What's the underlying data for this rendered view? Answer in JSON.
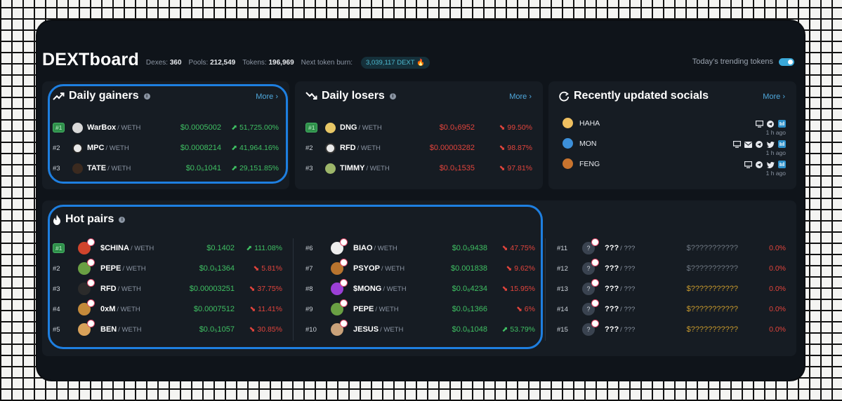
{
  "header": {
    "title": "DEXTboard",
    "dexes_label": "Dexes:",
    "dexes": "360",
    "pools_label": "Pools:",
    "pools": "212,549",
    "tokens_label": "Tokens:",
    "tokens": "196,969",
    "burn_label": "Next token burn:",
    "burn": "3,039,117 DEXT 🔥",
    "trending_label": "Today's trending tokens"
  },
  "gainers": {
    "title": "Daily gainers",
    "more": "More ›",
    "rows": [
      {
        "rank": "#1",
        "symbol": "WarBox",
        "pair": "/ WETH",
        "price": "$0.0005002",
        "change": "⬈ 51,725.00%"
      },
      {
        "rank": "#2",
        "symbol": "MPC",
        "pair": "/ WETH",
        "price": "$0.0008214",
        "change": "⬈ 41,964.16%"
      },
      {
        "rank": "#3",
        "symbol": "TATE",
        "pair": "/ WETH",
        "price": "$0.0₅1041",
        "change": "⬈ 29,151.85%"
      }
    ]
  },
  "losers": {
    "title": "Daily losers",
    "more": "More ›",
    "rows": [
      {
        "rank": "#1",
        "symbol": "DNG",
        "pair": "/ WETH",
        "price": "$0.0₅6952",
        "change": "⬊ 99.50%"
      },
      {
        "rank": "#2",
        "symbol": "RFD",
        "pair": "/ WETH",
        "price": "$0.00003282",
        "change": "⬊ 98.87%"
      },
      {
        "rank": "#3",
        "symbol": "TIMMY",
        "pair": "/ WETH",
        "price": "$0.0₅1535",
        "change": "⬊ 97.81%"
      }
    ]
  },
  "socials": {
    "title": "Recently updated socials",
    "more": "More ›",
    "rows": [
      {
        "name": "HAHA",
        "ago": "1 h ago"
      },
      {
        "name": "MON",
        "ago": "1 h ago"
      },
      {
        "name": "FENG",
        "ago": "1 h ago"
      }
    ]
  },
  "hot": {
    "title": "Hot pairs",
    "rows": [
      {
        "rank": "#1",
        "symbol": "$CHINA",
        "pair": "/ WETH",
        "price": "$0.1402",
        "change": "⬈ 111.08%",
        "dir": "up"
      },
      {
        "rank": "#2",
        "symbol": "PEPE",
        "pair": "/ WETH",
        "price": "$0.0₅1364",
        "change": "⬊ 5.81%",
        "dir": "down"
      },
      {
        "rank": "#3",
        "symbol": "RFD",
        "pair": "/ WETH",
        "price": "$0.00003251",
        "change": "⬊ 37.75%",
        "dir": "down"
      },
      {
        "rank": "#4",
        "symbol": "0xM",
        "pair": "/ WETH",
        "price": "$0.0007512",
        "change": "⬊ 11.41%",
        "dir": "down"
      },
      {
        "rank": "#5",
        "symbol": "BEN",
        "pair": "/ WETH",
        "price": "$0.0₅1057",
        "change": "⬊ 30.85%",
        "dir": "down"
      },
      {
        "rank": "#6",
        "symbol": "BIAO",
        "pair": "/ WETH",
        "price": "$0.0₅9438",
        "change": "⬊ 47.75%",
        "dir": "down"
      },
      {
        "rank": "#7",
        "symbol": "PSYOP",
        "pair": "/ WETH",
        "price": "$0.001838",
        "change": "⬊ 9.62%",
        "dir": "down"
      },
      {
        "rank": "#8",
        "symbol": "$MONG",
        "pair": "/ WETH",
        "price": "$0.0₆4234",
        "change": "⬊ 15.95%",
        "dir": "down"
      },
      {
        "rank": "#9",
        "symbol": "PEPE",
        "pair": "/ WETH",
        "price": "$0.0₅1366",
        "change": "⬊ 6%",
        "dir": "down"
      },
      {
        "rank": "#10",
        "symbol": "JESUS",
        "pair": "/ WETH",
        "price": "$0.0₆1048",
        "change": "⬈ 53.79%",
        "dir": "up"
      },
      {
        "rank": "#11",
        "symbol": "???",
        "pair": "/ ???",
        "price": "$???????????",
        "change": "0.0%",
        "dir": "none"
      },
      {
        "rank": "#12",
        "symbol": "???",
        "pair": "/ ???",
        "price": "$???????????",
        "change": "0.0%",
        "dir": "none"
      },
      {
        "rank": "#13",
        "symbol": "???",
        "pair": "/ ???",
        "price": "$???????????",
        "change": "0.0%",
        "dir": "none"
      },
      {
        "rank": "#14",
        "symbol": "???",
        "pair": "/ ???",
        "price": "$???????????",
        "change": "0.0%",
        "dir": "none"
      },
      {
        "rank": "#15",
        "symbol": "???",
        "pair": "/ ???",
        "price": "$???????????",
        "change": "0.0%",
        "dir": "none"
      }
    ]
  },
  "colors": {
    "accent": "#4fa8dc",
    "gain": "#3fc063",
    "loss": "#e2443c",
    "highlight": "#1e7fe0",
    "badge": "#2f8f4a"
  }
}
